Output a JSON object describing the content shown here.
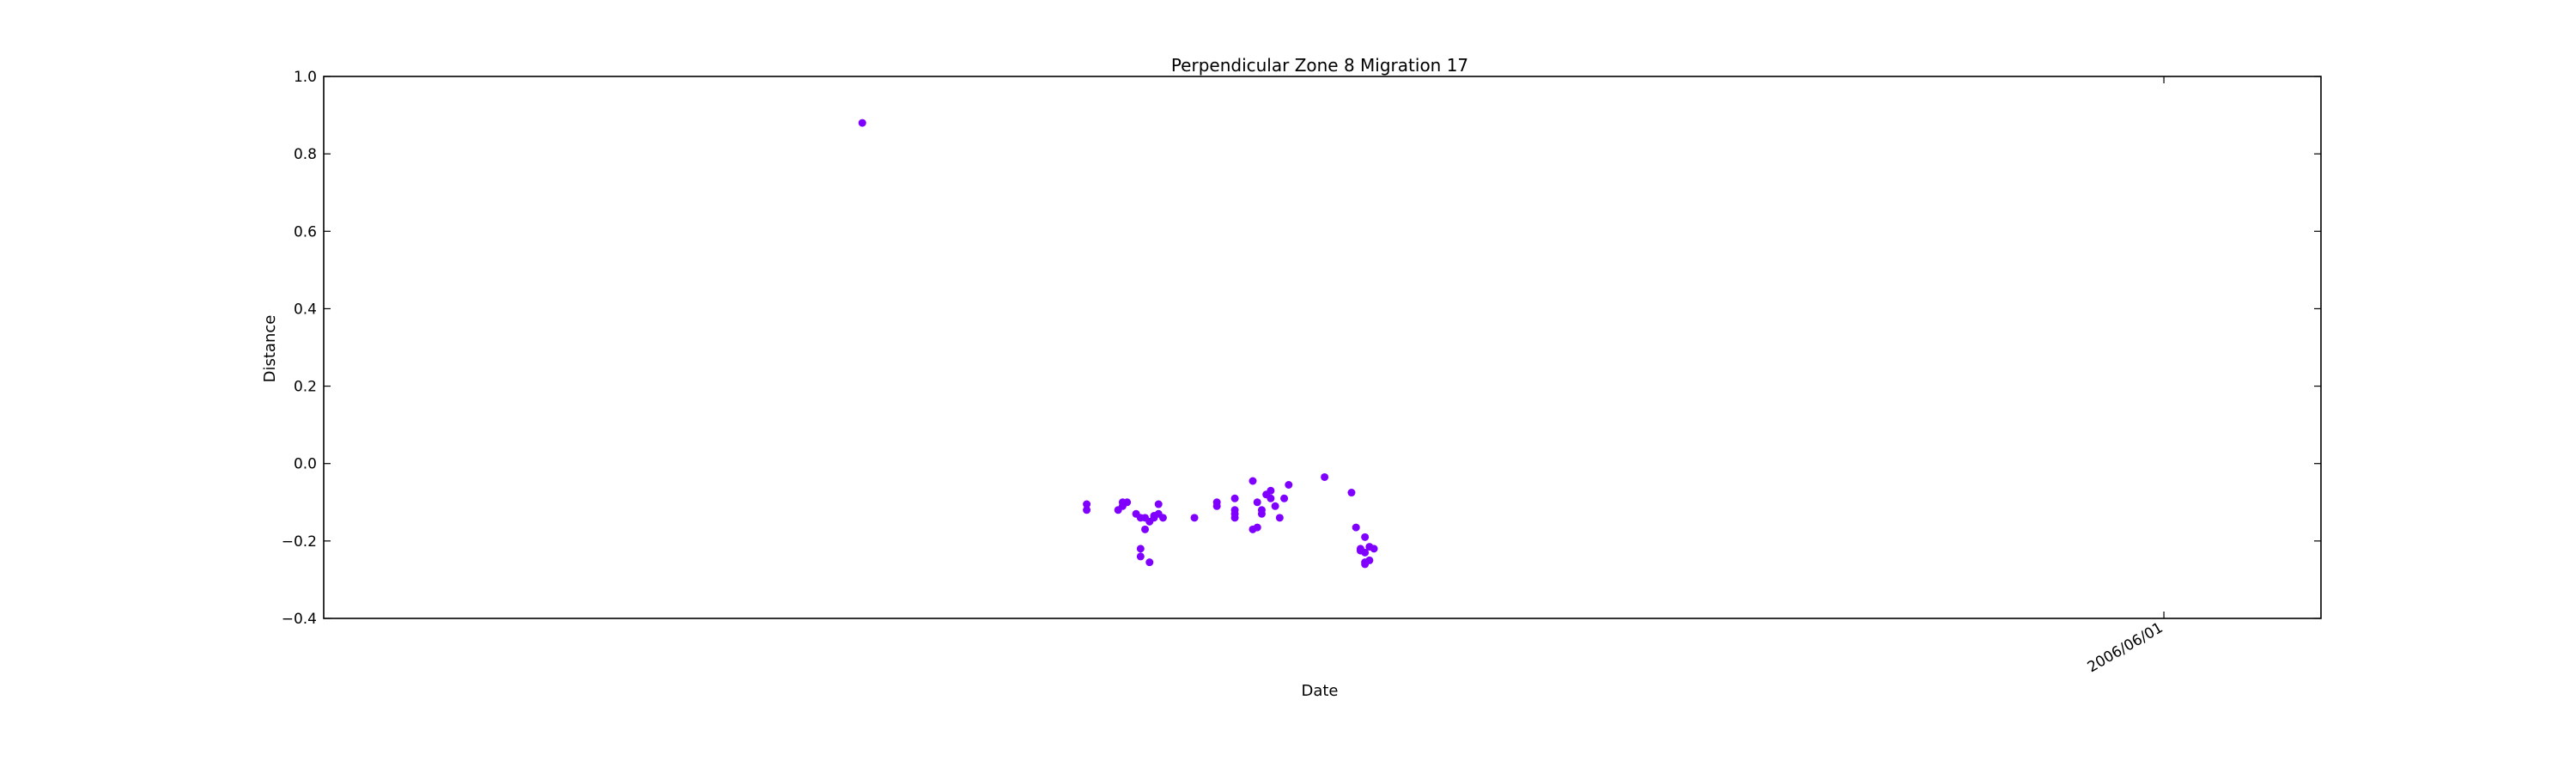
{
  "chart_data": {
    "type": "scatter",
    "title": "Perpendicular Zone 8 Migration 17",
    "xlabel": "Date",
    "ylabel": "Distance",
    "ylim": [
      -0.4,
      1.0
    ],
    "y_ticks": [
      -0.4,
      -0.2,
      0.0,
      0.2,
      0.4,
      0.6,
      0.8,
      1.0
    ],
    "y_tick_labels": [
      "−0.4",
      "−0.2",
      "0.0",
      "0.2",
      "0.4",
      "0.6",
      "0.8",
      "1.0"
    ],
    "xlim": [
      "2005-04-17",
      "2006-07-06"
    ],
    "x_ticks": [
      "2006-06-01"
    ],
    "x_tick_labels": [
      "2006/06/01"
    ],
    "grid": false,
    "marker_color": "#8000ff",
    "series": [
      {
        "x": [
          "2005-08-15",
          "2005-10-04",
          "2005-10-04",
          "2005-10-11",
          "2005-10-12",
          "2005-10-12",
          "2005-10-13",
          "2005-10-15",
          "2005-10-16",
          "2005-10-16",
          "2005-10-16",
          "2005-10-17",
          "2005-10-17",
          "2005-10-18",
          "2005-10-18",
          "2005-10-19",
          "2005-10-19",
          "2005-10-20",
          "2005-10-20",
          "2005-10-21",
          "2005-10-28",
          "2005-11-02",
          "2005-11-02",
          "2005-11-06",
          "2005-11-06",
          "2005-11-06",
          "2005-11-06",
          "2005-11-10",
          "2005-11-10",
          "2005-11-11",
          "2005-11-11",
          "2005-11-12",
          "2005-11-12",
          "2005-11-13",
          "2005-11-14",
          "2005-11-14",
          "2005-11-15",
          "2005-11-16",
          "2005-11-17",
          "2005-11-18",
          "2005-11-26",
          "2005-12-02",
          "2005-12-03",
          "2005-12-04",
          "2005-12-04",
          "2005-12-05",
          "2005-12-05",
          "2005-12-05",
          "2005-12-05",
          "2005-12-06",
          "2005-12-06",
          "2005-12-07"
        ],
        "y": [
          0.88,
          -0.105,
          -0.12,
          -0.12,
          -0.11,
          -0.1,
          -0.1,
          -0.13,
          -0.14,
          -0.22,
          -0.24,
          -0.14,
          -0.17,
          -0.255,
          -0.15,
          -0.14,
          -0.135,
          -0.105,
          -0.13,
          -0.14,
          -0.14,
          -0.11,
          -0.1,
          -0.09,
          -0.12,
          -0.13,
          -0.14,
          -0.045,
          -0.17,
          -0.165,
          -0.1,
          -0.12,
          -0.13,
          -0.08,
          -0.07,
          -0.09,
          -0.11,
          -0.14,
          -0.09,
          -0.055,
          -0.035,
          -0.075,
          -0.165,
          -0.22,
          -0.225,
          -0.19,
          -0.23,
          -0.26,
          -0.255,
          -0.215,
          -0.25,
          -0.22
        ]
      }
    ]
  }
}
